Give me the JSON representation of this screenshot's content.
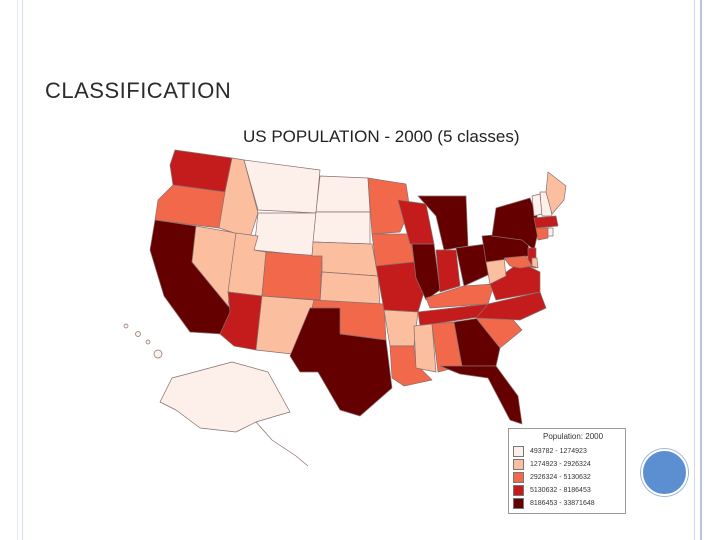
{
  "slide": {
    "title": "CLASSIFICATION"
  },
  "map": {
    "title": "US POPULATION - 2000 (5 classes)",
    "legend": {
      "title": "Population: 2000",
      "classes": [
        {
          "label": "493782 - 1274923",
          "color": "#fdf0ea"
        },
        {
          "label": "1274923 - 2926324",
          "color": "#fbbfa0"
        },
        {
          "label": "2926324 - 5130632",
          "color": "#f1694a"
        },
        {
          "label": "5130632 - 8186453",
          "color": "#c41c1c"
        },
        {
          "label": "8186453 - 33871648",
          "color": "#650000"
        }
      ]
    }
  }
}
